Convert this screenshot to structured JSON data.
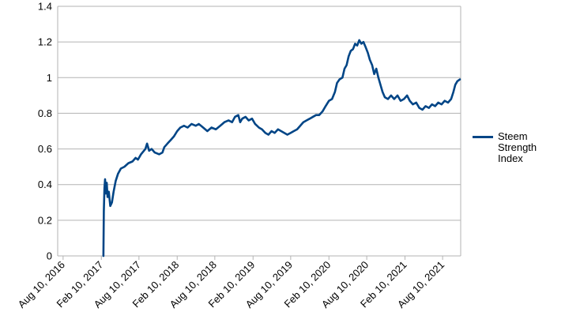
{
  "chart_data": {
    "type": "line",
    "title": "",
    "xlabel": "",
    "ylabel": "",
    "ylim": [
      0,
      1.4
    ],
    "yticks": [
      "0",
      "0.2",
      "0.4",
      "0.6",
      "0.8",
      "1",
      "1.2",
      "1.4"
    ],
    "xticks": [
      "Aug 10, 2016",
      "Feb 10, 2017",
      "Aug 10, 2017",
      "Feb 10, 2018",
      "Aug 10, 2018",
      "Feb 10, 2019",
      "Aug 10, 2019",
      "Feb 10, 2020",
      "Aug 10, 2020",
      "Feb 10, 2021",
      "Aug 10, 2021"
    ],
    "xlim": [
      "2016-07-15",
      "2021-11-05"
    ],
    "grid": "horizontal",
    "legend_position": "right",
    "series": [
      {
        "name": "Steem Strength Index",
        "color": "#004586",
        "points": [
          [
            "2017-02-20",
            0.0
          ],
          [
            "2017-02-22",
            0.25
          ],
          [
            "2017-02-25",
            0.38
          ],
          [
            "2017-02-28",
            0.43
          ],
          [
            "2017-03-04",
            0.35
          ],
          [
            "2017-03-08",
            0.41
          ],
          [
            "2017-03-12",
            0.33
          ],
          [
            "2017-03-18",
            0.36
          ],
          [
            "2017-03-25",
            0.28
          ],
          [
            "2017-04-02",
            0.3
          ],
          [
            "2017-04-10",
            0.36
          ],
          [
            "2017-04-20",
            0.42
          ],
          [
            "2017-05-01",
            0.46
          ],
          [
            "2017-05-15",
            0.49
          ],
          [
            "2017-06-01",
            0.5
          ],
          [
            "2017-06-20",
            0.52
          ],
          [
            "2017-07-10",
            0.53
          ],
          [
            "2017-07-25",
            0.55
          ],
          [
            "2017-08-05",
            0.54
          ],
          [
            "2017-08-20",
            0.57
          ],
          [
            "2017-09-10",
            0.6
          ],
          [
            "2017-09-18",
            0.63
          ],
          [
            "2017-09-28",
            0.59
          ],
          [
            "2017-10-10",
            0.6
          ],
          [
            "2017-10-25",
            0.58
          ],
          [
            "2017-11-15",
            0.57
          ],
          [
            "2017-12-01",
            0.58
          ],
          [
            "2017-12-10",
            0.61
          ],
          [
            "2017-12-25",
            0.63
          ],
          [
            "2018-01-10",
            0.65
          ],
          [
            "2018-01-25",
            0.67
          ],
          [
            "2018-02-10",
            0.7
          ],
          [
            "2018-02-25",
            0.72
          ],
          [
            "2018-03-15",
            0.73
          ],
          [
            "2018-04-01",
            0.72
          ],
          [
            "2018-04-20",
            0.74
          ],
          [
            "2018-05-10",
            0.73
          ],
          [
            "2018-05-25",
            0.74
          ],
          [
            "2018-06-15",
            0.72
          ],
          [
            "2018-07-05",
            0.7
          ],
          [
            "2018-07-25",
            0.72
          ],
          [
            "2018-08-15",
            0.71
          ],
          [
            "2018-09-05",
            0.73
          ],
          [
            "2018-09-25",
            0.75
          ],
          [
            "2018-10-15",
            0.76
          ],
          [
            "2018-11-01",
            0.75
          ],
          [
            "2018-11-15",
            0.78
          ],
          [
            "2018-12-01",
            0.79
          ],
          [
            "2018-12-10",
            0.75
          ],
          [
            "2018-12-20",
            0.77
          ],
          [
            "2019-01-05",
            0.78
          ],
          [
            "2019-01-20",
            0.76
          ],
          [
            "2019-02-05",
            0.77
          ],
          [
            "2019-02-20",
            0.74
          ],
          [
            "2019-03-10",
            0.72
          ],
          [
            "2019-03-25",
            0.71
          ],
          [
            "2019-04-10",
            0.69
          ],
          [
            "2019-04-25",
            0.68
          ],
          [
            "2019-05-10",
            0.7
          ],
          [
            "2019-05-25",
            0.69
          ],
          [
            "2019-06-10",
            0.71
          ],
          [
            "2019-06-25",
            0.7
          ],
          [
            "2019-07-10",
            0.69
          ],
          [
            "2019-07-25",
            0.68
          ],
          [
            "2019-08-10",
            0.69
          ],
          [
            "2019-08-25",
            0.7
          ],
          [
            "2019-09-10",
            0.71
          ],
          [
            "2019-09-25",
            0.73
          ],
          [
            "2019-10-10",
            0.75
          ],
          [
            "2019-10-25",
            0.76
          ],
          [
            "2019-11-10",
            0.77
          ],
          [
            "2019-11-25",
            0.78
          ],
          [
            "2019-12-10",
            0.79
          ],
          [
            "2019-12-25",
            0.79
          ],
          [
            "2020-01-10",
            0.81
          ],
          [
            "2020-01-25",
            0.84
          ],
          [
            "2020-02-10",
            0.87
          ],
          [
            "2020-02-25",
            0.88
          ],
          [
            "2020-03-10",
            0.92
          ],
          [
            "2020-03-20",
            0.97
          ],
          [
            "2020-04-01",
            0.99
          ],
          [
            "2020-04-15",
            1.0
          ],
          [
            "2020-04-25",
            1.05
          ],
          [
            "2020-05-05",
            1.07
          ],
          [
            "2020-05-15",
            1.12
          ],
          [
            "2020-05-25",
            1.15
          ],
          [
            "2020-06-05",
            1.16
          ],
          [
            "2020-06-15",
            1.19
          ],
          [
            "2020-06-25",
            1.18
          ],
          [
            "2020-07-05",
            1.21
          ],
          [
            "2020-07-15",
            1.19
          ],
          [
            "2020-07-25",
            1.2
          ],
          [
            "2020-08-05",
            1.17
          ],
          [
            "2020-08-15",
            1.14
          ],
          [
            "2020-08-25",
            1.1
          ],
          [
            "2020-09-05",
            1.07
          ],
          [
            "2020-09-15",
            1.02
          ],
          [
            "2020-09-25",
            1.05
          ],
          [
            "2020-10-05",
            1.0
          ],
          [
            "2020-10-15",
            0.96
          ],
          [
            "2020-10-25",
            0.92
          ],
          [
            "2020-11-05",
            0.89
          ],
          [
            "2020-11-20",
            0.88
          ],
          [
            "2020-12-05",
            0.9
          ],
          [
            "2020-12-20",
            0.88
          ],
          [
            "2021-01-05",
            0.9
          ],
          [
            "2021-01-20",
            0.87
          ],
          [
            "2021-02-05",
            0.88
          ],
          [
            "2021-02-20",
            0.9
          ],
          [
            "2021-03-05",
            0.87
          ],
          [
            "2021-03-20",
            0.85
          ],
          [
            "2021-04-05",
            0.86
          ],
          [
            "2021-04-20",
            0.83
          ],
          [
            "2021-05-05",
            0.82
          ],
          [
            "2021-05-20",
            0.84
          ],
          [
            "2021-06-05",
            0.83
          ],
          [
            "2021-06-20",
            0.85
          ],
          [
            "2021-07-05",
            0.84
          ],
          [
            "2021-07-20",
            0.86
          ],
          [
            "2021-08-05",
            0.85
          ],
          [
            "2021-08-20",
            0.87
          ],
          [
            "2021-09-05",
            0.86
          ],
          [
            "2021-09-20",
            0.88
          ],
          [
            "2021-10-01",
            0.92
          ],
          [
            "2021-10-10",
            0.96
          ],
          [
            "2021-10-20",
            0.98
          ],
          [
            "2021-11-01",
            0.99
          ]
        ]
      }
    ]
  }
}
